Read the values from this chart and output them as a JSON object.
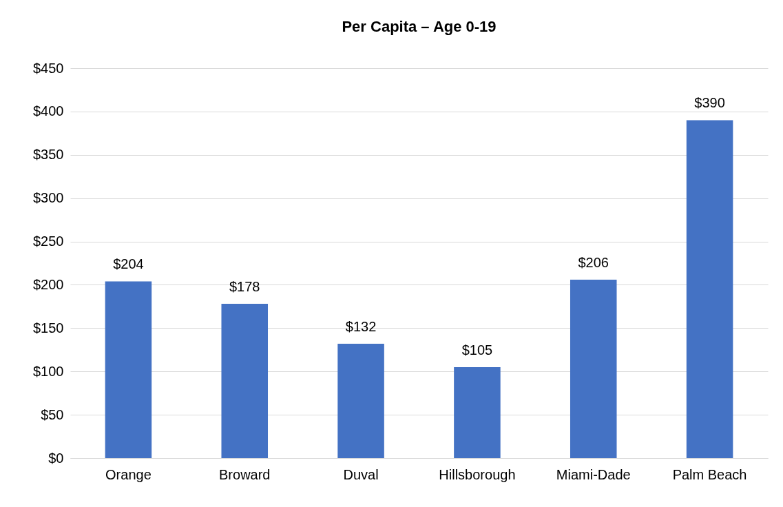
{
  "chart_data": {
    "type": "bar",
    "title": "Per Capita – Age 0-19",
    "categories": [
      "Orange",
      "Broward",
      "Duval",
      "Hillsborough",
      "Miami-Dade",
      "Palm Beach"
    ],
    "values": [
      204,
      178,
      132,
      105,
      206,
      390
    ],
    "value_labels": [
      "$204",
      "$178",
      "$132",
      "$105",
      "$206",
      "$390"
    ],
    "color": "#4472c4",
    "ylim": [
      0,
      450
    ],
    "yticks": [
      {
        "value": 0,
        "label": "$0"
      },
      {
        "value": 50,
        "label": "$50"
      },
      {
        "value": 100,
        "label": "$100"
      },
      {
        "value": 150,
        "label": "$150"
      },
      {
        "value": 200,
        "label": "$200"
      },
      {
        "value": 250,
        "label": "$250"
      },
      {
        "value": 300,
        "label": "$300"
      },
      {
        "value": 350,
        "label": "$350"
      },
      {
        "value": 400,
        "label": "$400"
      },
      {
        "value": 450,
        "label": "$450"
      }
    ],
    "grid": "y"
  }
}
